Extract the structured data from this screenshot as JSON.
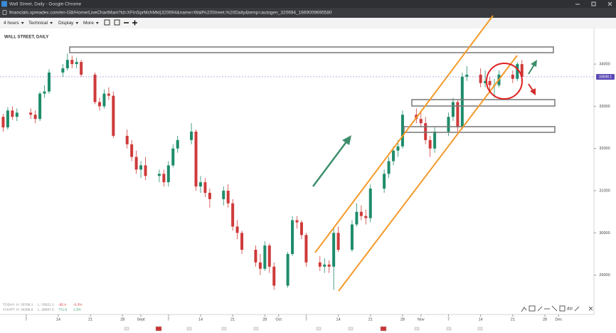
{
  "window": {
    "title": "Wall Street, Daily - Google Chrome",
    "url": "financials.spreadex.com/en-GB/Home/LiveChartMain?id=XFinSprMchMkt|320694&name=Wall%20Street,%20Daily&temp=autogen_320694_1669009695580"
  },
  "toolbar": {
    "items": [
      "4 hours",
      "Technical",
      "Display",
      "More"
    ]
  },
  "chart_data": {
    "type": "candlestick",
    "title": "WALL STREET, DAILY",
    "x": [
      0,
      1,
      2,
      3,
      4,
      7,
      8,
      9,
      10,
      11,
      14,
      15,
      16,
      17,
      18,
      21,
      22,
      23,
      24,
      25,
      28,
      29,
      30,
      31,
      32,
      35,
      36,
      37,
      38,
      39,
      42,
      43,
      44,
      45,
      46,
      49,
      50,
      51,
      52,
      53,
      56,
      57,
      58,
      59,
      60,
      63,
      64,
      65,
      66,
      67,
      70,
      71,
      72,
      73,
      74,
      77,
      78,
      79,
      80,
      81,
      84,
      85,
      86,
      87,
      88,
      91,
      92,
      93,
      94,
      95,
      98,
      99,
      100,
      101,
      102,
      105,
      106,
      107,
      108,
      109,
      112,
      113,
      114
    ],
    "open": [
      32800,
      32750,
      32500,
      32900,
      32750,
      32850,
      32800,
      32700,
      33300,
      33350,
      33800,
      33900,
      34100,
      34000,
      34050,
      33750,
      33100,
      33000,
      33300,
      33250,
      32300,
      32100,
      31800,
      31500,
      31600,
      31350,
      31400,
      31200,
      31600,
      32000,
      32200,
      32400,
      31100,
      31200,
      30950,
      30800,
      31000,
      30700,
      30150,
      30000,
      29600,
      29300,
      29150,
      29700,
      29200,
      28750,
      29500,
      30300,
      30250,
      29950,
      29300,
      29200,
      29250,
      29200,
      30000,
      29600,
      30200,
      30500,
      30400,
      30350,
      31050,
      31400,
      31700,
      31950,
      32050,
      32800,
      32700,
      32600,
      32200,
      32000,
      32400,
      32750,
      33100,
      32500,
      33700,
      33750,
      33550,
      33600,
      33500,
      33500,
      33750,
      33650,
      34000
    ],
    "high": [
      32900,
      32820,
      32980,
      33000,
      32950,
      32950,
      32900,
      33350,
      33500,
      33880,
      34000,
      34250,
      34200,
      34150,
      34100,
      33800,
      33200,
      33400,
      33450,
      33350,
      32450,
      32200,
      31950,
      31700,
      31800,
      31500,
      31500,
      31700,
      32100,
      32300,
      32600,
      32450,
      31350,
      31300,
      31050,
      31100,
      31150,
      30800,
      30300,
      30050,
      29700,
      29500,
      29800,
      29750,
      29300,
      29550,
      30400,
      30400,
      30300,
      30000,
      29450,
      29400,
      29350,
      30100,
      30150,
      30300,
      30700,
      30650,
      30550,
      31150,
      31500,
      31800,
      32050,
      32200,
      32900,
      32950,
      32850,
      32750,
      32300,
      32500,
      32850,
      33200,
      33150,
      33800,
      33950,
      33900,
      33850,
      33700,
      33650,
      33850,
      33850,
      34050,
      34100
    ],
    "low": [
      32650,
      32400,
      32450,
      32680,
      32650,
      32700,
      32600,
      32650,
      33200,
      33300,
      33700,
      33850,
      33900,
      33900,
      33700,
      33050,
      32900,
      32950,
      33150,
      32250,
      32000,
      31700,
      31400,
      31300,
      31250,
      31200,
      31100,
      31100,
      31550,
      31900,
      32100,
      31000,
      30950,
      30850,
      30600,
      30650,
      30600,
      30050,
      29850,
      29500,
      29200,
      29000,
      29100,
      29050,
      28650,
      28700,
      29450,
      30100,
      29850,
      29200,
      29100,
      29050,
      29050,
      28650,
      29550,
      29550,
      30150,
      30300,
      30200,
      30250,
      30950,
      31300,
      31600,
      31800,
      32000,
      32600,
      32500,
      32100,
      31800,
      31900,
      32300,
      32650,
      32400,
      32450,
      33600,
      33450,
      33450,
      33350,
      33200,
      33450,
      33550,
      33600,
      33650
    ],
    "close": [
      32750,
      32500,
      32900,
      32750,
      32850,
      32800,
      32700,
      33300,
      33350,
      33800,
      33900,
      34100,
      34000,
      34050,
      33750,
      33100,
      33000,
      33300,
      33250,
      32300,
      32100,
      31800,
      31500,
      31600,
      31350,
      31400,
      31200,
      31600,
      32000,
      32200,
      32400,
      31100,
      31200,
      30950,
      30800,
      31000,
      30700,
      30150,
      30000,
      29600,
      29300,
      29150,
      29700,
      29200,
      28750,
      29500,
      30300,
      30250,
      29950,
      29300,
      29200,
      29250,
      29200,
      30000,
      29600,
      30200,
      30500,
      30400,
      30350,
      31050,
      31400,
      31700,
      31950,
      32050,
      32800,
      32700,
      32600,
      32200,
      32000,
      32400,
      32750,
      33100,
      32500,
      33700,
      33750,
      33550,
      33600,
      33500,
      33500,
      33750,
      33650,
      34000,
      33700
    ],
    "up_color": "#1e8c6b",
    "down_color": "#cf3a3a",
    "xlim": [
      0,
      130
    ],
    "xticks": [
      {
        "value": 6,
        "label": "7"
      },
      {
        "value": 13,
        "label": "14"
      },
      {
        "value": 20,
        "label": "21"
      },
      {
        "value": 27,
        "label": "28"
      },
      {
        "value": 31,
        "label": "Sept"
      },
      {
        "value": 37,
        "label": "7"
      },
      {
        "value": 44,
        "label": "14"
      },
      {
        "value": 51,
        "label": "21"
      },
      {
        "value": 58,
        "label": "28"
      },
      {
        "value": 61,
        "label": "Oct"
      },
      {
        "value": 67,
        "label": "7"
      },
      {
        "value": 74,
        "label": "14"
      },
      {
        "value": 81,
        "label": "21"
      },
      {
        "value": 88,
        "label": "28"
      },
      {
        "value": 92,
        "label": "Nov"
      },
      {
        "value": 98,
        "label": "7"
      },
      {
        "value": 105,
        "label": "14"
      },
      {
        "value": 112,
        "label": "21"
      },
      {
        "value": 119,
        "label": "28"
      },
      {
        "value": 122,
        "label": "Dec"
      }
    ],
    "ylim": [
      28100,
      34760
    ],
    "yticks": [
      29000,
      30000,
      31000,
      32000,
      33000,
      34000
    ],
    "grid": false,
    "last_price": 33698.1,
    "last_price_color": "#5b4bb5"
  },
  "info": {
    "rows": [
      [
        "TODAY:",
        "H: 33786.1",
        "L: 33621.1",
        "-95.4",
        "-0.3%"
      ],
      [
        "CHART:",
        "H: 34286.8",
        "L: 28687.0",
        "771.6",
        "2.3%"
      ]
    ]
  },
  "tools": {
    "label": "dsl"
  }
}
